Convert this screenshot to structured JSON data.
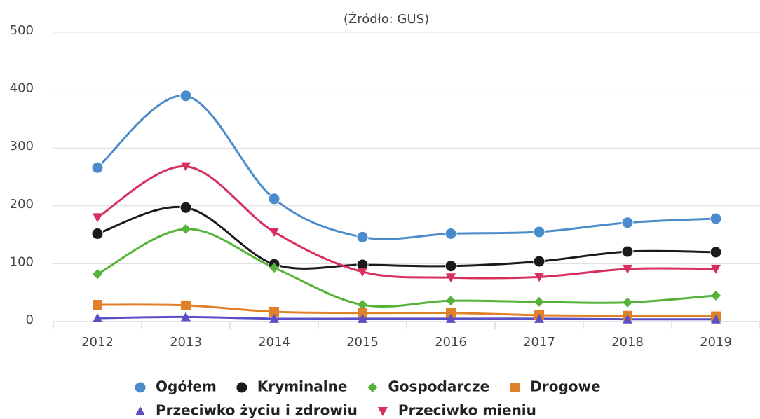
{
  "chart_data": {
    "type": "line",
    "subtitle": "(Źródło: GUS)",
    "categories": [
      "2012",
      "2013",
      "2014",
      "2015",
      "2016",
      "2017",
      "2018",
      "2019"
    ],
    "ylim": [
      0,
      500
    ],
    "yticks": [
      0,
      100,
      200,
      300,
      400,
      500
    ],
    "grid": true,
    "legend": "bottom",
    "smooth": true,
    "series": [
      {
        "name": "Ogółem",
        "color": "#4a8bcc",
        "marker": "circle",
        "values": [
          266,
          390,
          212,
          146,
          152,
          155,
          171,
          178
        ]
      },
      {
        "name": "Kryminalne",
        "color": "#1a1a1a",
        "marker": "circle",
        "values": [
          152,
          197,
          99,
          98,
          96,
          104,
          121,
          120
        ]
      },
      {
        "name": "Gospodarcze",
        "color": "#56b33a",
        "marker": "diamond",
        "values": [
          82,
          160,
          93,
          29,
          36,
          34,
          33,
          45
        ]
      },
      {
        "name": "Drogowe",
        "color": "#e0812a",
        "marker": "square",
        "values": [
          29,
          28,
          17,
          15,
          15,
          11,
          10,
          9
        ]
      },
      {
        "name": "Przeciwko życiu i zdrowiu",
        "color": "#5a4fc4",
        "marker": "triangle",
        "values": [
          6,
          8,
          5,
          5,
          5,
          5,
          4,
          4
        ]
      },
      {
        "name": "Przeciwko mieniu",
        "color": "#d7305e",
        "marker": "triangle-down",
        "values": [
          180,
          268,
          155,
          86,
          76,
          77,
          91,
          91
        ]
      }
    ]
  }
}
